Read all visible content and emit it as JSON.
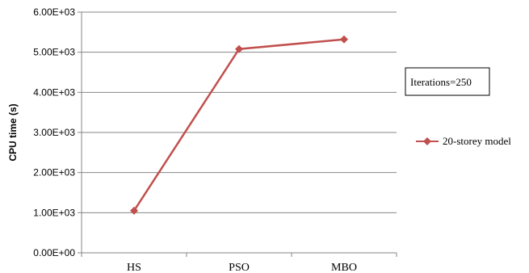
{
  "chart_data": {
    "type": "line",
    "categories": [
      "HS",
      "PSO",
      "MBO"
    ],
    "series": [
      {
        "name": "20-storey model",
        "values": [
          1050,
          5080,
          5320
        ],
        "color": "#c0504d"
      }
    ],
    "ylabel": "CPU time (s)",
    "xlabel": "",
    "ylim": [
      0,
      6000
    ],
    "yticks": [
      0,
      1000,
      2000,
      3000,
      4000,
      5000,
      6000
    ],
    "ytick_labels": [
      "0.00E+00",
      "1.00E+03",
      "2.00E+03",
      "3.00E+03",
      "4.00E+03",
      "5.00E+03",
      "6.00E+03"
    ],
    "grid": true,
    "legend_position": "right",
    "annotation": "Iterations=250",
    "marker": "diamond"
  }
}
